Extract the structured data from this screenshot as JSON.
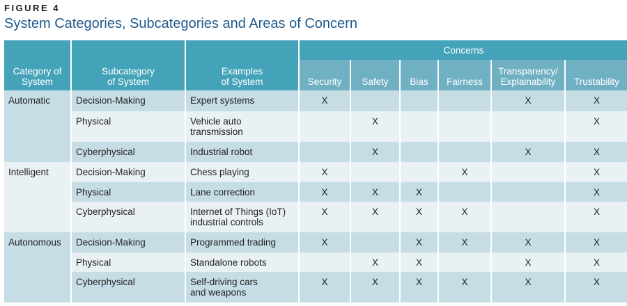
{
  "figure_label": "FIGURE 4",
  "title": "System Categories, Subcategories and Areas of Concern",
  "table": {
    "headers": {
      "category": [
        "Category of",
        "System"
      ],
      "subcategory": [
        "Subcategory",
        "of System"
      ],
      "examples": [
        "Examples",
        "of System"
      ],
      "concerns_group": "Concerns",
      "concerns": [
        "Security",
        "Safety",
        "Bias",
        "Fairness",
        "Transparency/\nExplainability",
        "Trustability"
      ]
    },
    "mark": "X",
    "colors": {
      "header": "#45a3b9",
      "subheader": "#70b0c3",
      "row_dark": "#c6dde5",
      "row_light": "#e9f1f4",
      "title": "#1f5a8c"
    },
    "categories": [
      {
        "name": "Automatic",
        "rows": [
          {
            "subcategory": "Decision-Making",
            "example": "Expert systems",
            "concerns": [
              true,
              false,
              false,
              false,
              true,
              true
            ]
          },
          {
            "subcategory": "Physical",
            "example": "Vehicle auto\ntransmission",
            "concerns": [
              false,
              true,
              false,
              false,
              false,
              true
            ]
          },
          {
            "subcategory": "Cyberphysical",
            "example": "Industrial robot",
            "concerns": [
              false,
              true,
              false,
              false,
              true,
              true
            ]
          }
        ]
      },
      {
        "name": "Intelligent",
        "rows": [
          {
            "subcategory": "Decision-Making",
            "example": "Chess playing",
            "concerns": [
              true,
              false,
              false,
              true,
              false,
              true
            ]
          },
          {
            "subcategory": "Physical",
            "example": "Lane correction",
            "concerns": [
              true,
              true,
              true,
              false,
              false,
              true
            ]
          },
          {
            "subcategory": "Cyberphysical",
            "example": "Internet of Things (IoT)\nindustrial controls",
            "concerns": [
              true,
              true,
              true,
              true,
              false,
              true
            ]
          }
        ]
      },
      {
        "name": "Autonomous",
        "rows": [
          {
            "subcategory": "Decision-Making",
            "example": "Programmed trading",
            "concerns": [
              true,
              false,
              true,
              true,
              true,
              true
            ]
          },
          {
            "subcategory": "Physical",
            "example": "Standalone robots",
            "concerns": [
              false,
              true,
              true,
              false,
              true,
              true
            ]
          },
          {
            "subcategory": "Cyberphysical",
            "example": "Self-driving cars\nand weapons",
            "concerns": [
              true,
              true,
              true,
              true,
              true,
              true
            ]
          }
        ]
      }
    ]
  }
}
